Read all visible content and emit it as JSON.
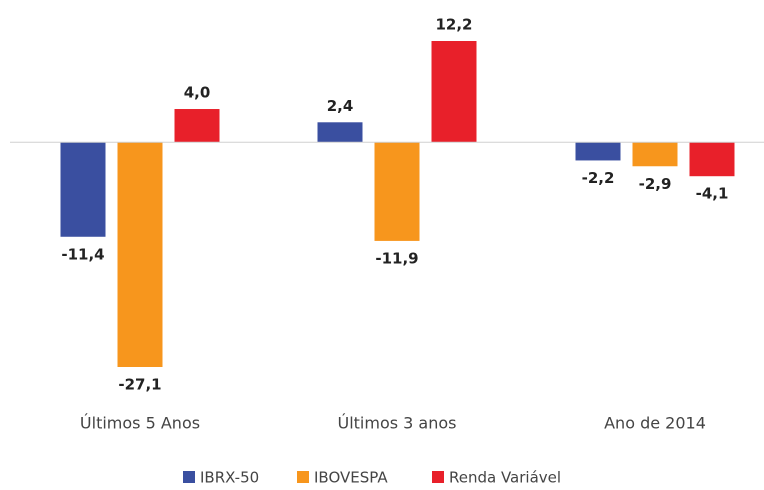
{
  "chart_data": {
    "type": "bar",
    "categories": [
      "Últimos 5 Anos",
      "Últimos 3 anos",
      "Ano de 2014"
    ],
    "series": [
      {
        "name": "IBRX-50",
        "color": "#3a4fa0",
        "values": [
          -11.4,
          2.4,
          -2.2
        ],
        "value_labels": [
          "-11,4",
          "2,4",
          "-2,2"
        ]
      },
      {
        "name": "IBOVESPA",
        "color": "#f7961d",
        "values": [
          -27.1,
          -11.9,
          -2.9
        ],
        "value_labels": [
          "-27,1",
          "-11,9",
          "-2,9"
        ]
      },
      {
        "name": "Renda Variável",
        "color": "#e8202a",
        "values": [
          4.0,
          12.2,
          -4.1
        ],
        "value_labels": [
          "4,0",
          "12,2",
          "-4,1"
        ]
      }
    ],
    "legend": "bottom"
  }
}
